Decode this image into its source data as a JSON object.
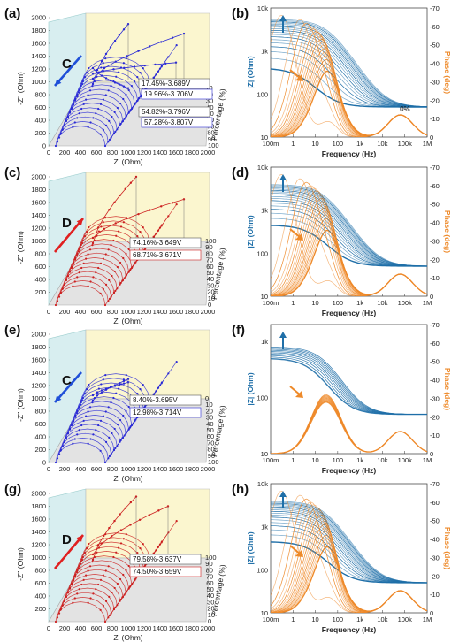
{
  "panel_labels": [
    "(a)",
    "(b)",
    "(c)",
    "(d)",
    "(e)",
    "(f)",
    "(g)",
    "(h)"
  ],
  "colors": {
    "blue_points": "#2a2ad6",
    "red_points": "#cc2020",
    "bode_blue": "#1f6fa8",
    "bode_orange": "#ee8a2a",
    "arrow_blue": "#1f4fd8",
    "arrow_red": "#e02020",
    "wall_left": "#d8eef0",
    "wall_back": "#fbf6cf",
    "floor": "#e3e3e3"
  },
  "chart_data": [
    {
      "panel": "(a)",
      "type": "scatter",
      "style": "3d-nyquist",
      "xlabel": "Z' (Ohm)",
      "ylabel": "-Z'' (Ohm)",
      "zlabel": "Percentage (%)",
      "xlim": [
        0,
        2000
      ],
      "ylim": [
        0,
        2000
      ],
      "xticks": [
        "0",
        "200",
        "400",
        "600",
        "800",
        "1000",
        "1200",
        "1400",
        "1600",
        "1800",
        "2000"
      ],
      "yticks": [
        "0",
        "200",
        "400",
        "600",
        "800",
        "1000",
        "1200",
        "1400",
        "1600",
        "1800",
        "2000"
      ],
      "zticks": [
        "0",
        "10",
        "20",
        "30",
        "40",
        "50",
        "60",
        "70",
        "80",
        "90",
        "100"
      ],
      "process_letter": "C",
      "color": "#2a2ad6",
      "arrow": "down",
      "annotations": [
        "17.45%-3.689V",
        "19.96%-3.706V",
        "54.82%-3.796V",
        "57.28%-3.807V"
      ],
      "series": [
        {
          "percent": 17.45,
          "tail_x": 1000,
          "tail_y": 1900
        },
        {
          "percent": 19.96,
          "tail_x": 1700,
          "tail_y": 1750
        },
        {
          "percent": 54.82,
          "tail_x": 1600,
          "tail_y": 1300
        },
        {
          "percent": 57.28,
          "tail_x": 1000,
          "tail_y": 900
        }
      ]
    },
    {
      "panel": "(b)",
      "type": "line",
      "style": "bode",
      "xlabel": "Frequency (Hz)",
      "ylabel": "|Z| (Ohm)",
      "y2label": "Phase (deg)",
      "xticks": [
        "100m",
        "1",
        "10",
        "100",
        "1k",
        "10k",
        "100k",
        "1M"
      ],
      "yticks": [
        "10",
        "100",
        "1k",
        "10k"
      ],
      "y2ticks": [
        "0",
        "-10",
        "-20",
        "-30",
        "-40",
        "-50",
        "-60",
        "-70"
      ],
      "ylim": [
        10,
        10000
      ],
      "y2lim": [
        0,
        -70
      ],
      "xlim": [
        0.1,
        1000000
      ],
      "annotations": [
        "0%"
      ],
      "variant": "dense"
    },
    {
      "panel": "(c)",
      "type": "scatter",
      "style": "3d-nyquist",
      "xlabel": "Z' (Ohm)",
      "ylabel": "-Z'' (Ohm)",
      "zlabel": "Percentage (%)",
      "xlim": [
        0,
        2000
      ],
      "ylim": [
        0,
        2000
      ],
      "xticks": [
        "0",
        "200",
        "400",
        "600",
        "800",
        "1000",
        "1200",
        "1400",
        "1600",
        "1800",
        "2000"
      ],
      "yticks": [
        "200",
        "400",
        "600",
        "800",
        "1000",
        "1200",
        "1400",
        "1600",
        "1800",
        "2000"
      ],
      "zticks": [
        "100",
        "90",
        "80",
        "70",
        "60",
        "50",
        "40",
        "30",
        "20",
        "10",
        "0"
      ],
      "process_letter": "D",
      "color": "#cc2020",
      "arrow": "up",
      "annotations": [
        "74.16%-3.649V",
        "68.71%-3.671V"
      ],
      "series": [
        {
          "percent": 74.16,
          "tail_x": 1100,
          "tail_y": 2000
        },
        {
          "percent": 68.71,
          "tail_x": 1700,
          "tail_y": 1650
        }
      ]
    },
    {
      "panel": "(d)",
      "type": "line",
      "style": "bode",
      "xlabel": "Frequency (Hz)",
      "ylabel": "|Z| (Ohm)",
      "y2label": "Phase (deg)",
      "xticks": [
        "100m",
        "1",
        "10",
        "100",
        "1k",
        "10k",
        "100k",
        "1M"
      ],
      "yticks": [
        "10",
        "100",
        "1k",
        "10k"
      ],
      "y2ticks": [
        "0",
        "-10",
        "-20",
        "-30",
        "-40",
        "-50",
        "-60",
        "-70"
      ],
      "ylim": [
        10,
        10000
      ],
      "y2lim": [
        0,
        -70
      ],
      "xlim": [
        0.1,
        1000000
      ],
      "variant": "fan"
    },
    {
      "panel": "(e)",
      "type": "scatter",
      "style": "3d-nyquist",
      "xlabel": "Z' (Ohm)",
      "ylabel": "-Z'' (Ohm)",
      "zlabel": "Percentage (%)",
      "xlim": [
        0,
        2000
      ],
      "ylim": [
        0,
        2000
      ],
      "xticks": [
        "0",
        "200",
        "400",
        "600",
        "800",
        "1000",
        "1200",
        "1400",
        "1600",
        "1800",
        "2000"
      ],
      "yticks": [
        "0",
        "200",
        "400",
        "600",
        "800",
        "1000",
        "1200",
        "1400",
        "1600",
        "1800",
        "2000"
      ],
      "zticks": [
        "0",
        "10",
        "20",
        "30",
        "40",
        "50",
        "60",
        "70",
        "80",
        "90",
        "100"
      ],
      "process_letter": "C",
      "color": "#2a2ad6",
      "arrow": "down",
      "annotations": [
        "8.40%-3.695V",
        "12.98%-3.714V"
      ],
      "series": [
        {
          "percent": 8.4,
          "tail_x": 1000,
          "tail_y": 1300
        },
        {
          "percent": 12.98,
          "tail_x": 1000,
          "tail_y": 1250
        }
      ]
    },
    {
      "panel": "(f)",
      "type": "line",
      "style": "bode",
      "xlabel": "Frequency (Hz)",
      "ylabel": "|Z| (Ohm)",
      "y2label": "Phase (deg)",
      "xticks": [
        "100m",
        "1",
        "10",
        "100",
        "1k",
        "10k",
        "100k",
        "1M"
      ],
      "yticks": [
        "10",
        "100",
        "1k"
      ],
      "y2ticks": [
        "0",
        "-10",
        "-20",
        "-30",
        "-40",
        "-50",
        "-60",
        "-70"
      ],
      "ylim": [
        10,
        2000
      ],
      "y2lim": [
        0,
        -70
      ],
      "xlim": [
        0.1,
        1000000
      ],
      "variant": "narrow"
    },
    {
      "panel": "(g)",
      "type": "scatter",
      "style": "3d-nyquist",
      "xlabel": "Z' (Ohm)",
      "ylabel": "-Z'' (Ohm)",
      "zlabel": "Percentage (%)",
      "xlim": [
        0,
        2000
      ],
      "ylim": [
        0,
        2000
      ],
      "xticks": [
        "0",
        "200",
        "400",
        "600",
        "800",
        "1000",
        "1200",
        "1400",
        "1600",
        "1800",
        "2000"
      ],
      "yticks": [
        "200",
        "400",
        "600",
        "800",
        "1000",
        "1200",
        "1400",
        "1600",
        "1800",
        "2000"
      ],
      "zticks": [
        "100",
        "90",
        "80",
        "70",
        "60",
        "50",
        "40",
        "30",
        "20",
        "10",
        "0"
      ],
      "process_letter": "D",
      "color": "#cc2020",
      "arrow": "up",
      "annotations": [
        "79.58%-3.637V",
        "74.50%-3.659V"
      ],
      "series": [
        {
          "percent": 79.58,
          "tail_x": 1100,
          "tail_y": 1950
        },
        {
          "percent": 74.5,
          "tail_x": 1500,
          "tail_y": 1800
        }
      ]
    },
    {
      "panel": "(h)",
      "type": "line",
      "style": "bode",
      "xlabel": "Frequency (Hz)",
      "ylabel": "|Z| (Ohm)",
      "y2label": "Phase (deg)",
      "xticks": [
        "100m",
        "1",
        "10",
        "100",
        "1k",
        "10k",
        "100k",
        "1M"
      ],
      "yticks": [
        "10",
        "100",
        "1k",
        "10k"
      ],
      "y2ticks": [
        "0",
        "-10",
        "-20",
        "-30",
        "-40",
        "-50",
        "-60",
        "-70"
      ],
      "ylim": [
        10,
        10000
      ],
      "y2lim": [
        0,
        -70
      ],
      "xlim": [
        0.1,
        1000000
      ],
      "variant": "fan"
    }
  ]
}
